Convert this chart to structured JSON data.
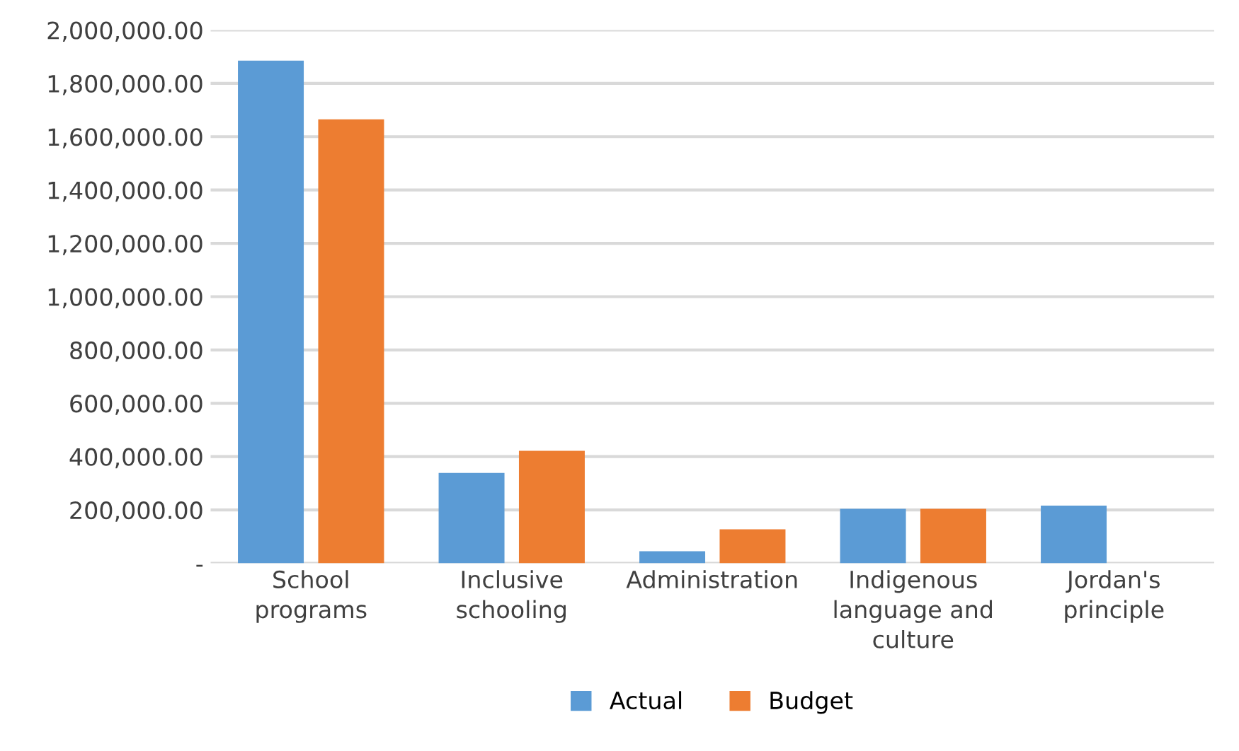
{
  "chart_data": {
    "type": "bar",
    "categories": [
      "School programs",
      "Inclusive schooling",
      "Administration",
      "Indigenous language and culture",
      "Jordan's principle"
    ],
    "series": [
      {
        "name": "Actual",
        "color": "#5b9bd5",
        "values": [
          1885000,
          339000,
          45000,
          204000,
          216000
        ]
      },
      {
        "name": "Budget",
        "color": "#ed7d31",
        "values": [
          1665000,
          422000,
          127000,
          204000,
          null
        ]
      }
    ],
    "ylim": [
      0,
      2000000
    ],
    "yticks": [
      {
        "value": 0,
        "label": "-"
      },
      {
        "value": 200000,
        "label": "200,000.00"
      },
      {
        "value": 400000,
        "label": "400,000.00"
      },
      {
        "value": 600000,
        "label": "600,000.00"
      },
      {
        "value": 800000,
        "label": "800,000.00"
      },
      {
        "value": 1000000,
        "label": "1,000,000.00"
      },
      {
        "value": 1200000,
        "label": "1,200,000.00"
      },
      {
        "value": 1400000,
        "label": "1,400,000.00"
      },
      {
        "value": 1600000,
        "label": "1,600,000.00"
      },
      {
        "value": 1800000,
        "label": "1,800,000.00"
      },
      {
        "value": 2000000,
        "label": "2,000,000.00"
      }
    ],
    "grid": "y",
    "legend": "bottom"
  }
}
